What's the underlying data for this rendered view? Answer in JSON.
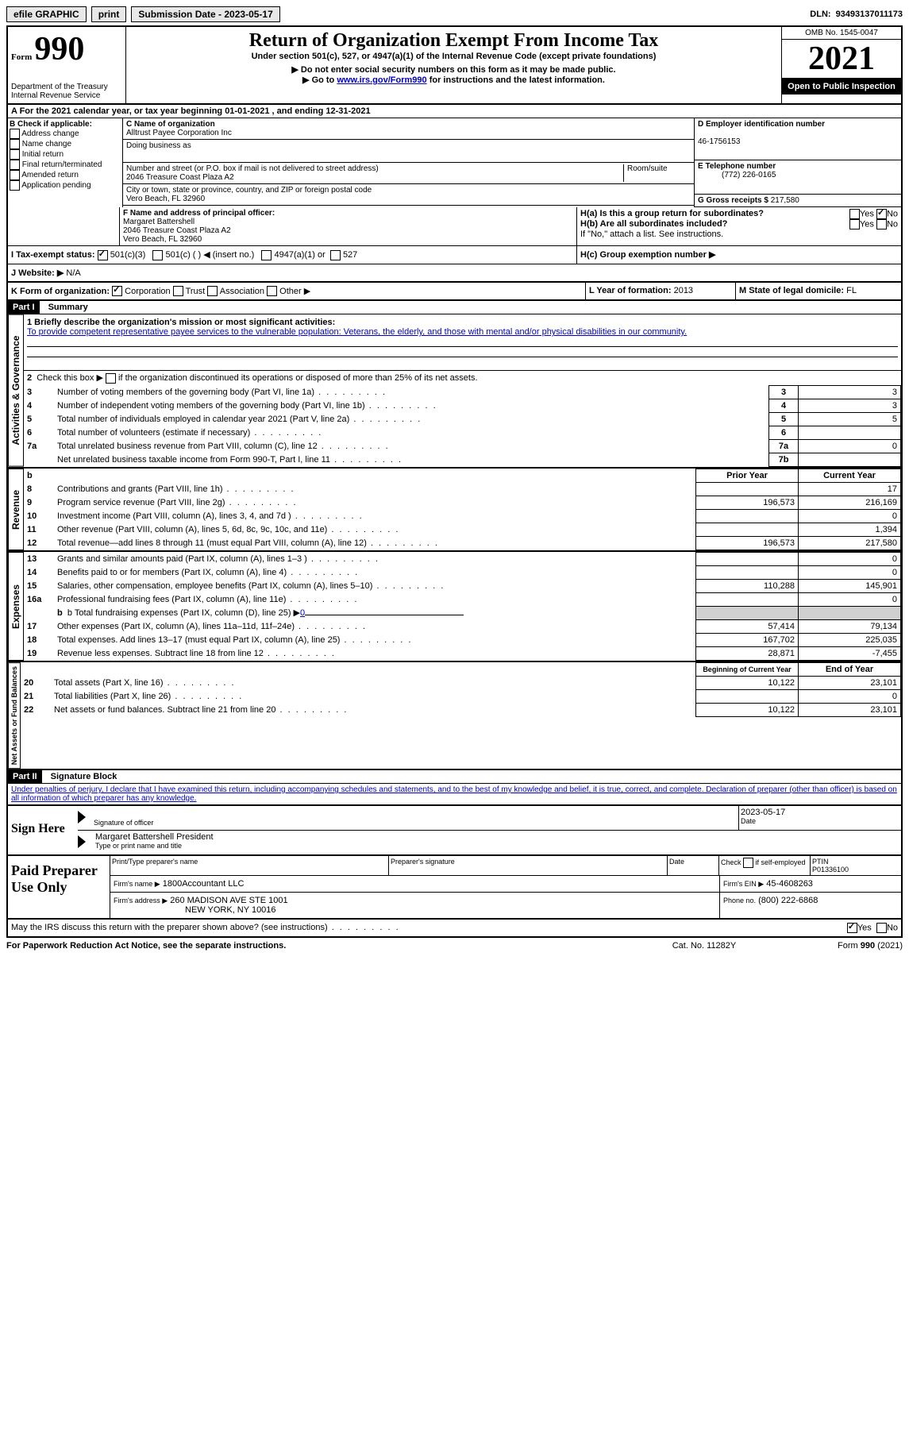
{
  "topbar": {
    "efile": "efile GRAPHIC",
    "print": "print",
    "submission": "Submission Date - 2023-05-17",
    "dln_label": "DLN:",
    "dln": "93493137011173"
  },
  "header": {
    "form_label": "Form",
    "form_number": "990",
    "title": "Return of Organization Exempt From Income Tax",
    "subtitle": "Under section 501(c), 527, or 4947(a)(1) of the Internal Revenue Code (except private foundations)",
    "note1": "▶ Do not enter social security numbers on this form as it may be made public.",
    "note2_pre": "▶ Go to ",
    "note2_link": "www.irs.gov/Form990",
    "note2_post": " for instructions and the latest information.",
    "dept": "Department of the Treasury",
    "irs": "Internal Revenue Service",
    "omb": "OMB No. 1545-0047",
    "year": "2021",
    "inspection": "Open to Public Inspection"
  },
  "line_a": "A For the 2021 calendar year, or tax year beginning 01-01-2021    , and ending 12-31-2021",
  "section_b": {
    "label": "B Check if applicable:",
    "items": [
      "Address change",
      "Name change",
      "Initial return",
      "Final return/terminated",
      "Amended return",
      "Application pending"
    ]
  },
  "section_c": {
    "label": "C Name of organization",
    "name": "Alltrust Payee Corporation Inc",
    "dba_label": "Doing business as",
    "addr_label": "Number and street (or P.O. box if mail is not delivered to street address)",
    "room_label": "Room/suite",
    "addr": "2046 Treasure Coast Plaza A2",
    "city_label": "City or town, state or province, country, and ZIP or foreign postal code",
    "city": "Vero Beach, FL  32960"
  },
  "section_d": {
    "label": "D Employer identification number",
    "ein": "46-1756153"
  },
  "section_e": {
    "label": "E Telephone number",
    "phone": "(772) 226-0165"
  },
  "section_g": {
    "label": "G Gross receipts $",
    "amount": "217,580"
  },
  "section_f": {
    "label": "F Name and address of principal officer:",
    "name": "Margaret Battershell",
    "addr1": "2046 Treasure Coast Plaza A2",
    "addr2": "Vero Beach, FL  32960"
  },
  "section_h": {
    "ha": "H(a)  Is this a group return for subordinates?",
    "hb": "H(b)  Are all subordinates included?",
    "hb_note": "If \"No,\" attach a list. See instructions.",
    "hc": "H(c)  Group exemption number ▶",
    "yes": "Yes",
    "no": "No"
  },
  "section_i": {
    "label": "I  Tax-exempt status:",
    "c3": "501(c)(3)",
    "c_other": "501(c) (  ) ◀ (insert no.)",
    "a1": "4947(a)(1) or",
    "s527": "527"
  },
  "section_j": {
    "label": "J  Website: ▶",
    "val": "N/A"
  },
  "section_k": {
    "label": "K Form of organization:",
    "corp": "Corporation",
    "trust": "Trust",
    "assoc": "Association",
    "other": "Other ▶"
  },
  "section_l": {
    "label": "L Year of formation:",
    "val": "2013"
  },
  "section_m": {
    "label": "M State of legal domicile:",
    "val": "FL"
  },
  "part1": {
    "label": "Part I",
    "title": "Summary",
    "line1_label": "1  Briefly describe the organization's mission or most significant activities:",
    "mission": "To provide competent representative payee services to the vulnerable population: Veterans, the elderly, and those with mental and/or physical disabilities in our community.",
    "line2": "2   Check this box ▶        if the organization discontinued its operations or disposed of more than 25% of its net assets.",
    "rows_gov": [
      {
        "n": "3",
        "t": "Number of voting members of the governing body (Part VI, line 1a)",
        "box": "3",
        "v": "3"
      },
      {
        "n": "4",
        "t": "Number of independent voting members of the governing body (Part VI, line 1b)",
        "box": "4",
        "v": "3"
      },
      {
        "n": "5",
        "t": "Total number of individuals employed in calendar year 2021 (Part V, line 2a)",
        "box": "5",
        "v": "5"
      },
      {
        "n": "6",
        "t": "Total number of volunteers (estimate if necessary)",
        "box": "6",
        "v": ""
      },
      {
        "n": "7a",
        "t": "Total unrelated business revenue from Part VIII, column (C), line 12",
        "box": "7a",
        "v": "0"
      },
      {
        "n": "",
        "t": "Net unrelated business taxable income from Form 990-T, Part I, line 11",
        "box": "7b",
        "v": ""
      }
    ],
    "prior": "Prior Year",
    "current": "Current Year",
    "rows_rev": [
      {
        "n": "8",
        "t": "Contributions and grants (Part VIII, line 1h)",
        "p": "",
        "c": "17"
      },
      {
        "n": "9",
        "t": "Program service revenue (Part VIII, line 2g)",
        "p": "196,573",
        "c": "216,169"
      },
      {
        "n": "10",
        "t": "Investment income (Part VIII, column (A), lines 3, 4, and 7d )",
        "p": "",
        "c": "0"
      },
      {
        "n": "11",
        "t": "Other revenue (Part VIII, column (A), lines 5, 6d, 8c, 9c, 10c, and 11e)",
        "p": "",
        "c": "1,394"
      },
      {
        "n": "12",
        "t": "Total revenue—add lines 8 through 11 (must equal Part VIII, column (A), line 12)",
        "p": "196,573",
        "c": "217,580"
      }
    ],
    "rows_exp": [
      {
        "n": "13",
        "t": "Grants and similar amounts paid (Part IX, column (A), lines 1–3 )",
        "p": "",
        "c": "0"
      },
      {
        "n": "14",
        "t": "Benefits paid to or for members (Part IX, column (A), line 4)",
        "p": "",
        "c": "0"
      },
      {
        "n": "15",
        "t": "Salaries, other compensation, employee benefits (Part IX, column (A), lines 5–10)",
        "p": "110,288",
        "c": "145,901"
      },
      {
        "n": "16a",
        "t": "Professional fundraising fees (Part IX, column (A), line 11e)",
        "p": "",
        "c": "0"
      }
    ],
    "line_b": "b  Total fundraising expenses (Part IX, column (D), line 25) ▶",
    "line_b_val": "0",
    "rows_exp2": [
      {
        "n": "17",
        "t": "Other expenses (Part IX, column (A), lines 11a–11d, 11f–24e)",
        "p": "57,414",
        "c": "79,134"
      },
      {
        "n": "18",
        "t": "Total expenses. Add lines 13–17 (must equal Part IX, column (A), line 25)",
        "p": "167,702",
        "c": "225,035"
      },
      {
        "n": "19",
        "t": "Revenue less expenses. Subtract line 18 from line 12",
        "p": "28,871",
        "c": "-7,455"
      }
    ],
    "beg": "Beginning of Current Year",
    "end": "End of Year",
    "rows_net": [
      {
        "n": "20",
        "t": "Total assets (Part X, line 16)",
        "p": "10,122",
        "c": "23,101"
      },
      {
        "n": "21",
        "t": "Total liabilities (Part X, line 26)",
        "p": "",
        "c": "0"
      },
      {
        "n": "22",
        "t": "Net assets or fund balances. Subtract line 21 from line 20",
        "p": "10,122",
        "c": "23,101"
      }
    ],
    "side_gov": "Activities & Governance",
    "side_rev": "Revenue",
    "side_exp": "Expenses",
    "side_net": "Net Assets or Fund Balances"
  },
  "part2": {
    "label": "Part II",
    "title": "Signature Block",
    "penalties": "Under penalties of perjury, I declare that I have examined this return, including accompanying schedules and statements, and to the best of my knowledge and belief, it is true, correct, and complete. Declaration of preparer (other than officer) is based on all information of which preparer has any knowledge.",
    "sign_here": "Sign Here",
    "sig_officer": "Signature of officer",
    "sig_date": "2023-05-17",
    "date_label": "Date",
    "officer_name": "Margaret Battershell  President",
    "type_name": "Type or print name and title",
    "paid": "Paid Preparer Use Only",
    "print_name": "Print/Type preparer's name",
    "prep_sig": "Preparer's signature",
    "check_if": "Check         if self-employed",
    "ptin_label": "PTIN",
    "ptin": "P01336100",
    "firm_name_label": "Firm's name     ▶",
    "firm_name": "1800Accountant LLC",
    "firm_ein_label": "Firm's EIN ▶",
    "firm_ein": "45-4608263",
    "firm_addr_label": "Firm's address ▶",
    "firm_addr1": "260 MADISON AVE STE 1001",
    "firm_addr2": "NEW YORK, NY  10016",
    "phone_label": "Phone no.",
    "phone": "(800) 222-6868",
    "may_irs": "May the IRS discuss this return with the preparer shown above? (see instructions)",
    "yes": "Yes",
    "no": "No"
  },
  "footer": {
    "paperwork": "For Paperwork Reduction Act Notice, see the separate instructions.",
    "cat": "Cat. No. 11282Y",
    "form": "Form 990 (2021)"
  }
}
